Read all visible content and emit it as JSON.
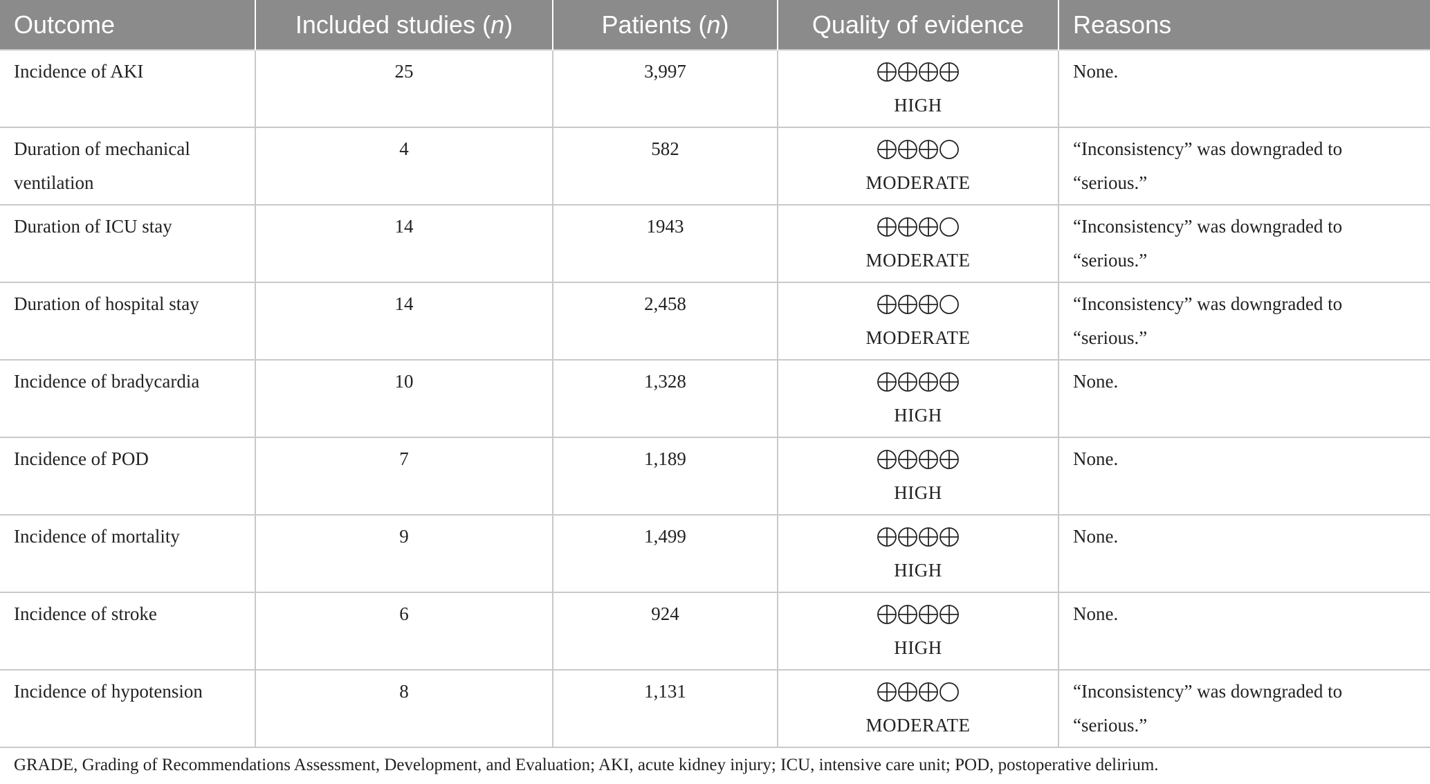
{
  "table": {
    "headers": {
      "outcome": "Outcome",
      "included_studies": "Included studies (",
      "included_studies_n": "n",
      "included_studies_close": ")",
      "patients": "Patients (",
      "patients_n": "n",
      "patients_close": ")",
      "quality": "Quality of evidence",
      "reasons": "Reasons"
    },
    "rows": [
      {
        "outcome": "Incidence of AKI",
        "studies": "25",
        "patients": "3,997",
        "plus_count": 4,
        "rating": "HIGH",
        "reason": "None."
      },
      {
        "outcome": "Duration of mechanical ventilation",
        "studies": "4",
        "patients": "582",
        "plus_count": 3,
        "rating": "MODERATE",
        "reason": "“Inconsistency” was downgraded to “serious.”"
      },
      {
        "outcome": "Duration of ICU stay",
        "studies": "14",
        "patients": "1943",
        "plus_count": 3,
        "rating": "MODERATE",
        "reason": "“Inconsistency” was downgraded to “serious.”"
      },
      {
        "outcome": "Duration of hospital stay",
        "studies": "14",
        "patients": "2,458",
        "plus_count": 3,
        "rating": "MODERATE",
        "reason": "“Inconsistency” was downgraded to “serious.”"
      },
      {
        "outcome": "Incidence of bradycardia",
        "studies": "10",
        "patients": "1,328",
        "plus_count": 4,
        "rating": "HIGH",
        "reason": "None."
      },
      {
        "outcome": "Incidence of POD",
        "studies": "7",
        "patients": "1,189",
        "plus_count": 4,
        "rating": "HIGH",
        "reason": "None."
      },
      {
        "outcome": "Incidence of mortality",
        "studies": "9",
        "patients": "1,499",
        "plus_count": 4,
        "rating": "HIGH",
        "reason": "None."
      },
      {
        "outcome": "Incidence of stroke",
        "studies": "6",
        "patients": "924",
        "plus_count": 4,
        "rating": "HIGH",
        "reason": "None."
      },
      {
        "outcome": "Incidence of hypotension",
        "studies": "8",
        "patients": "1,131",
        "plus_count": 3,
        "rating": "MODERATE",
        "reason": "“Inconsistency” was downgraded to “serious.”"
      }
    ]
  },
  "footnote": "GRADE, Grading of Recommendations Assessment, Development, and Evaluation; AKI, acute kidney injury; ICU, intensive care unit; POD, postoperative delirium."
}
